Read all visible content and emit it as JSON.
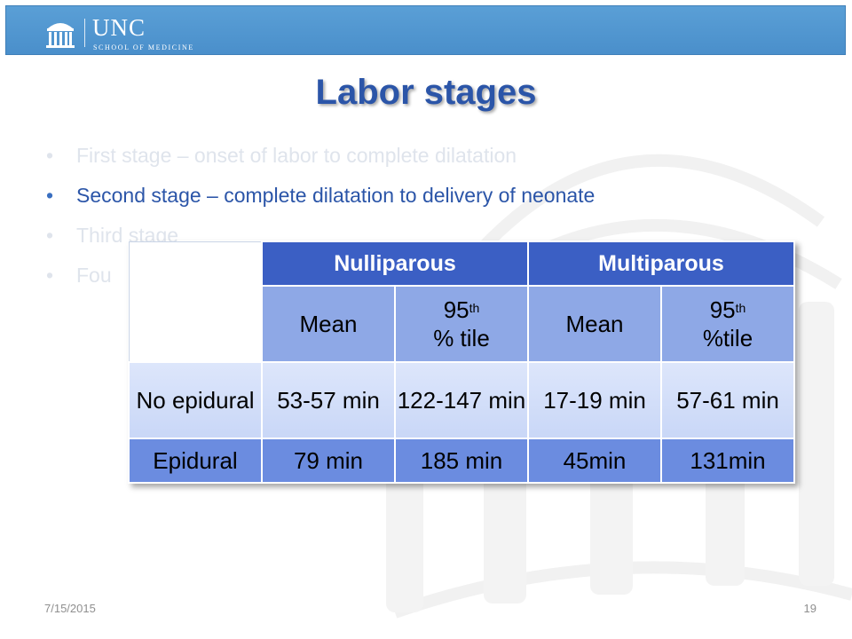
{
  "header": {
    "logo_name": "UNC",
    "logo_sub": "SCHOOL OF MEDICINE",
    "background": "#4a8fcb"
  },
  "title": "Labor stages",
  "bullets": [
    {
      "text": "First stage – onset of labor to complete dilatation",
      "state": "faded"
    },
    {
      "text": "Second stage – complete dilatation to delivery of neonate",
      "state": "active"
    },
    {
      "text": "Third stage",
      "state": "faded"
    },
    {
      "text": "Fou",
      "state": "faded"
    }
  ],
  "table": {
    "groups": [
      "Nulliparous",
      "Multiparous"
    ],
    "subheaders": [
      {
        "main": "Mean",
        "sup": "",
        "line2": ""
      },
      {
        "main": "95",
        "sup": "th",
        "line2": "% tile"
      },
      {
        "main": "Mean",
        "sup": "",
        "line2": ""
      },
      {
        "main": "95",
        "sup": "th",
        "line2": "%tile"
      }
    ],
    "rows": [
      {
        "label": "No epidural",
        "values": [
          "53-57 min",
          "122-147 min",
          "17-19 min",
          "57-61 min"
        ]
      },
      {
        "label": "Epidural",
        "values": [
          "79 min",
          "185 min",
          "45min",
          "131min"
        ]
      }
    ],
    "colors": {
      "header": "#3b5fc4",
      "subheader": "#8ea8e6",
      "row_light": "#d3def9",
      "row_dark": "#6b8ce0"
    }
  },
  "footer": {
    "date": "7/15/2015",
    "page": "19"
  }
}
